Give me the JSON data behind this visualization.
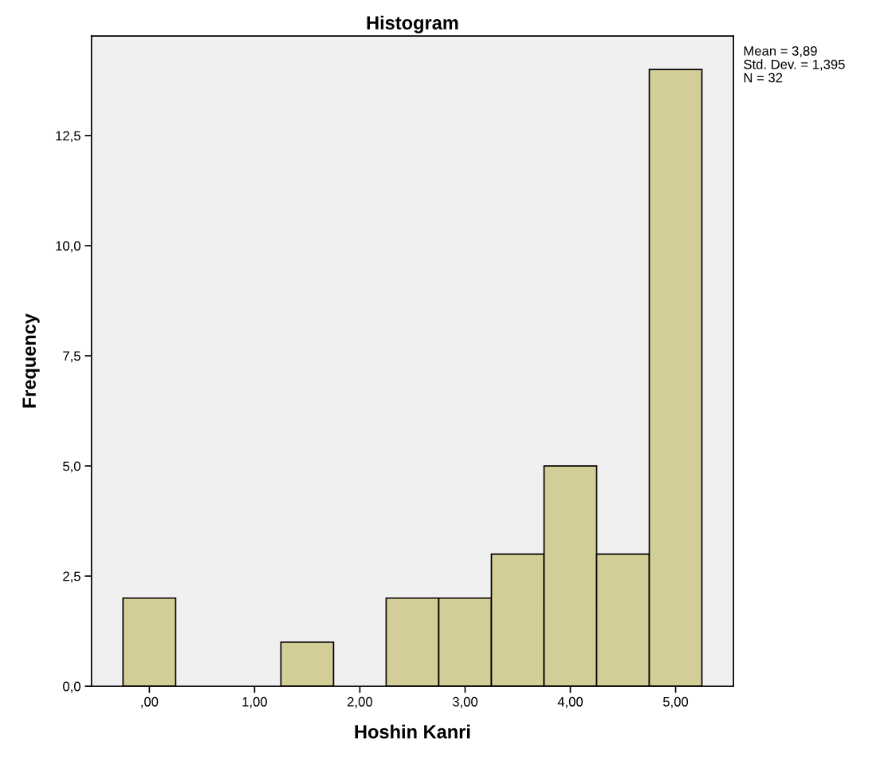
{
  "chart_data": {
    "type": "histogram",
    "title": "Histogram",
    "xlabel": "Hoshin Kanri",
    "ylabel": "Frequency",
    "bins": [
      -0.25,
      0.25,
      0.75,
      1.25,
      1.75,
      2.25,
      2.75,
      3.25,
      3.75,
      4.25,
      4.75,
      5.25
    ],
    "values": [
      2,
      0,
      0,
      1,
      0,
      2,
      2,
      3,
      5,
      3,
      14
    ],
    "color": "#d3ce97",
    "xlim": [
      -0.55,
      5.55
    ],
    "ylim": [
      0,
      14.76
    ],
    "xticks": [
      {
        "value": 0,
        "label": ",00"
      },
      {
        "value": 1,
        "label": "1,00"
      },
      {
        "value": 2,
        "label": "2,00"
      },
      {
        "value": 3,
        "label": "3,00"
      },
      {
        "value": 4,
        "label": "4,00"
      },
      {
        "value": 5,
        "label": "5,00"
      }
    ],
    "yticks": [
      {
        "value": 0,
        "label": "0,0"
      },
      {
        "value": 2.5,
        "label": "2,5"
      },
      {
        "value": 5,
        "label": "5,0"
      },
      {
        "value": 7.5,
        "label": "7,5"
      },
      {
        "value": 10,
        "label": "10,0"
      },
      {
        "value": 12.5,
        "label": "12,5"
      }
    ],
    "annotations": [
      "Mean = 3,89",
      "Std. Dev. = 1,395",
      "N = 32"
    ],
    "grid": false
  }
}
